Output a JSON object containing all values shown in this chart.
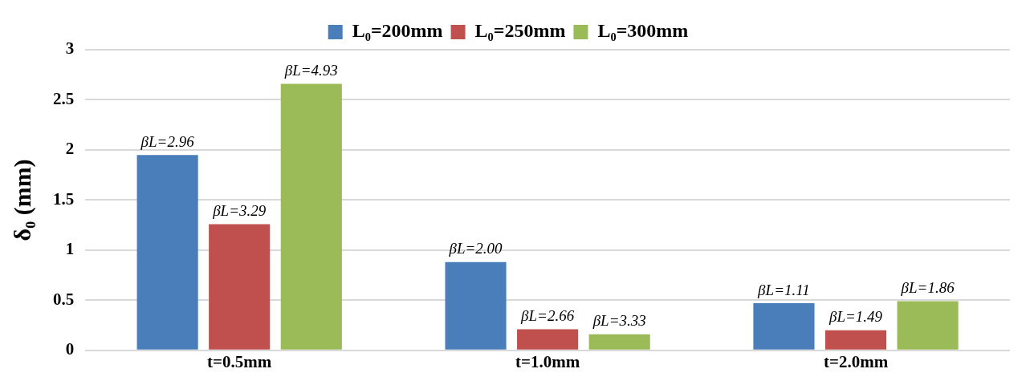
{
  "chart_data": {
    "type": "bar",
    "ylabel": "δ₀ (mm)",
    "categories": [
      "t=0.5mm",
      "t=1.0mm",
      "t=2.0mm"
    ],
    "series": [
      {
        "name": "L₀=200mm",
        "color": "#4a7ebb",
        "values": [
          1.95,
          0.88,
          0.47
        ]
      },
      {
        "name": "L₀=250mm",
        "color": "#c0504d",
        "values": [
          1.26,
          0.21,
          0.2
        ]
      },
      {
        "name": "L₀=300mm",
        "color": "#9bbb59",
        "values": [
          2.66,
          0.16,
          0.49
        ]
      }
    ],
    "annotations": [
      "βL=2.96",
      "βL=2.00",
      "βL=1.11",
      "βL=3.29",
      "βL=2.66",
      "βL=1.49",
      "βL=4.93",
      "βL=3.33",
      "βL=1.86"
    ],
    "ylim": [
      0,
      3
    ],
    "yticks": [
      0,
      0.5,
      1,
      1.5,
      2,
      2.5,
      3
    ],
    "grid": "y",
    "legend": "top"
  }
}
